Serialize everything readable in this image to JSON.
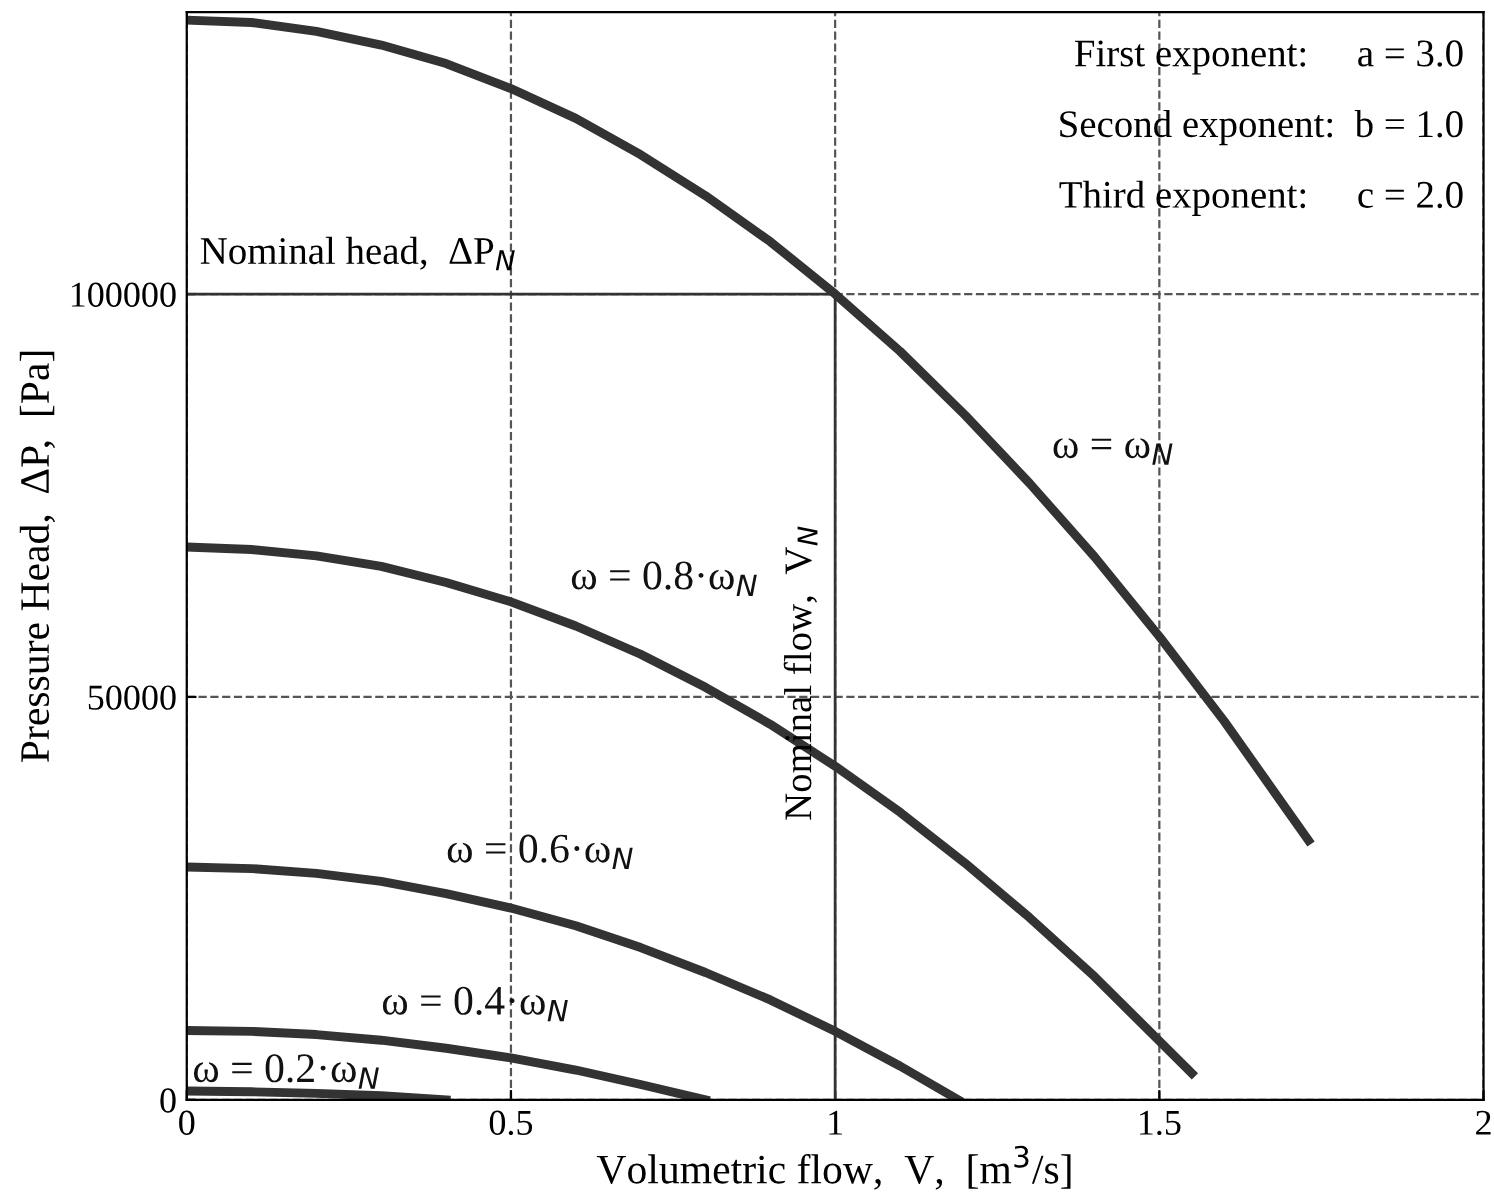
{
  "chart_data": {
    "type": "line",
    "xlabel": "Volumetric flow,  V,  [m$^{3}$/s]",
    "ylabel": "Pressure Head,  ΔP,  [Pa]",
    "xlim": [
      0,
      2
    ],
    "xticks": [
      0,
      0.5,
      1,
      1.5,
      2
    ],
    "ylim": [
      0,
      135000
    ],
    "yticks": [
      0,
      50000,
      100000
    ],
    "grid": true,
    "line_style": "solid",
    "marker": "none",
    "series": [
      {
        "name": "ω = ω$_{N}$",
        "color": "#333333",
        "x": [
          0,
          0.1,
          0.2,
          0.3,
          0.4,
          0.5,
          0.6,
          0.7,
          0.8,
          0.9,
          1.0,
          1.1,
          1.2,
          1.3,
          1.4,
          1.5,
          1.6,
          1.73
        ],
        "values": [
          134000,
          133700,
          132600,
          130900,
          128600,
          125500,
          121800,
          117300,
          112200,
          106500,
          100000,
          92900,
          85000,
          76500,
          67400,
          57500,
          47000,
          32200
        ]
      },
      {
        "name": "ω = 0.8·ω$_{N}$",
        "color": "#333333",
        "x": [
          0,
          0.1,
          0.2,
          0.3,
          0.4,
          0.5,
          0.6,
          0.7,
          0.8,
          0.9,
          1.0,
          1.1,
          1.2,
          1.3,
          1.4,
          1.55
        ],
        "values": [
          68600,
          68300,
          67500,
          66200,
          64200,
          61800,
          58800,
          55300,
          51200,
          46600,
          41400,
          35700,
          29400,
          22600,
          15300,
          3300
        ]
      },
      {
        "name": "ω = 0.6·ω$_{N}$",
        "color": "#333333",
        "x": [
          0,
          0.1,
          0.2,
          0.3,
          0.4,
          0.5,
          0.6,
          0.7,
          0.8,
          0.9,
          1.0,
          1.1,
          1.19
        ],
        "values": [
          28900,
          28700,
          28100,
          27100,
          25600,
          23800,
          21600,
          18900,
          15800,
          12400,
          8500,
          4200,
          0
        ]
      },
      {
        "name": "ω = 0.4·ω$_{N}$",
        "color": "#333333",
        "x": [
          0,
          0.1,
          0.2,
          0.3,
          0.4,
          0.5,
          0.6,
          0.7,
          0.8
        ],
        "values": [
          8600,
          8500,
          8100,
          7400,
          6400,
          5200,
          3700,
          1900,
          0
        ]
      },
      {
        "name": "ω = 0.2·ω$_{N}$",
        "color": "#333333",
        "x": [
          0,
          0.1,
          0.2,
          0.3,
          0.4
        ],
        "values": [
          1100,
          1000,
          800,
          500,
          0
        ]
      }
    ],
    "ref_lines": [
      {
        "axis": "y",
        "value": 100000,
        "label": "Nominal head,  ΔP$_{N}$",
        "color": "#333333"
      },
      {
        "axis": "x",
        "value": 1,
        "label": "Nominal flow,  V$_{N}$",
        "color": "#333333"
      }
    ],
    "annotations": [
      "First exponent:     a = 3.0",
      "Second exponent:  b = 1.0",
      "Third exponent:     c = 2.0"
    ]
  }
}
